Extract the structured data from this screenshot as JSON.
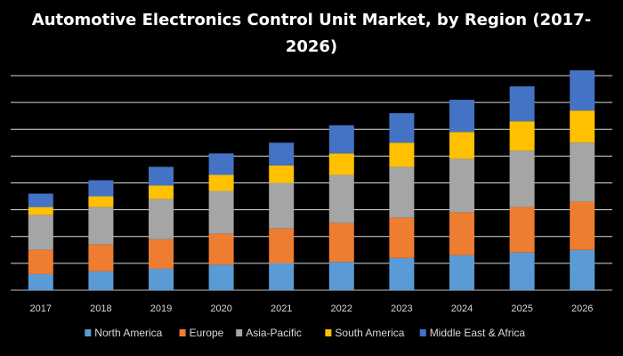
{
  "chart_data": {
    "type": "bar",
    "stacked": true,
    "title_lines": [
      "Automotive Electronics Control Unit Market, by Region (2017-",
      "2026)"
    ],
    "xlabel": "",
    "ylabel": "",
    "categories": [
      "2017",
      "2018",
      "2019",
      "2020",
      "2021",
      "2022",
      "2023",
      "2024",
      "2025",
      "2026"
    ],
    "ylim": [
      0,
      8
    ],
    "grid": true,
    "y_tick_labels_shown": false,
    "legend_position": "bottom",
    "series": [
      {
        "name": "North America",
        "color": "#5b9bd5",
        "values": [
          0.6,
          0.7,
          0.8,
          0.95,
          1.0,
          1.05,
          1.2,
          1.3,
          1.4,
          1.5
        ]
      },
      {
        "name": "Europe",
        "color": "#ed7d31",
        "values": [
          0.9,
          1.0,
          1.1,
          1.15,
          1.3,
          1.45,
          1.5,
          1.6,
          1.7,
          1.8
        ]
      },
      {
        "name": "Asia-Pacific",
        "color": "#a5a5a5",
        "values": [
          1.3,
          1.4,
          1.5,
          1.6,
          1.7,
          1.8,
          1.9,
          2.0,
          2.1,
          2.2
        ]
      },
      {
        "name": "South America",
        "color": "#ffc000",
        "values": [
          0.3,
          0.4,
          0.5,
          0.6,
          0.65,
          0.8,
          0.9,
          1.0,
          1.1,
          1.2
        ]
      },
      {
        "name": "Middle East & Africa",
        "color": "#4472c4",
        "values": [
          0.5,
          0.6,
          0.7,
          0.8,
          0.85,
          1.05,
          1.1,
          1.2,
          1.3,
          1.5
        ]
      }
    ]
  }
}
